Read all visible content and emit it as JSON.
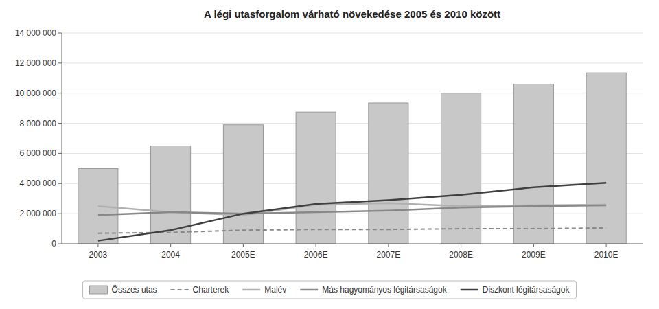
{
  "chart_data": {
    "type": "bar",
    "title": "A légi utasforgalom várható növekedése 2005 és 2010 között",
    "categories": [
      "2003",
      "2004",
      "2005E",
      "2006E",
      "2007E",
      "2008E",
      "2009E",
      "2010E"
    ],
    "series": [
      {
        "name": "Összes utas",
        "type": "bar",
        "color": "#c8c8c8",
        "values": [
          5000000,
          6500000,
          7900000,
          8750000,
          9350000,
          10000000,
          10600000,
          11350000
        ]
      },
      {
        "name": "Charterek",
        "type": "line",
        "color": "#888888",
        "line_style": "dashed",
        "values": [
          700000,
          750000,
          900000,
          950000,
          950000,
          1000000,
          1000000,
          1050000
        ]
      },
      {
        "name": "Malév",
        "type": "line",
        "color": "#b0b0b0",
        "line_style": "solid",
        "values": [
          2500000,
          2100000,
          1900000,
          2600000,
          2700000,
          2500000,
          2550000,
          2600000
        ]
      },
      {
        "name": "Más hagyományos légitársaságok",
        "type": "line",
        "color": "#888888",
        "line_style": "solid",
        "values": [
          1900000,
          2100000,
          2000000,
          2100000,
          2200000,
          2400000,
          2500000,
          2550000
        ]
      },
      {
        "name": "Diszkont légitársaságok",
        "type": "line",
        "color": "#404040",
        "line_style": "solid",
        "values": [
          200000,
          900000,
          2000000,
          2650000,
          2900000,
          3250000,
          3750000,
          4050000
        ]
      }
    ],
    "ylim": [
      0,
      14000000
    ],
    "yticks": [
      0,
      {
        "value": 2000000,
        "label": "2 000 000"
      },
      {
        "value": 4000000,
        "label": "4 000 000"
      },
      {
        "value": 6000000,
        "label": "6 000 000"
      },
      {
        "value": 8000000,
        "label": "8 000 000"
      },
      {
        "value": 10000000,
        "label": "10 000 000"
      },
      {
        "value": 12000000,
        "label": "12 000 000"
      },
      {
        "value": 14000000,
        "label": "14 000 000"
      }
    ],
    "grid": true,
    "legend": "bottom"
  }
}
